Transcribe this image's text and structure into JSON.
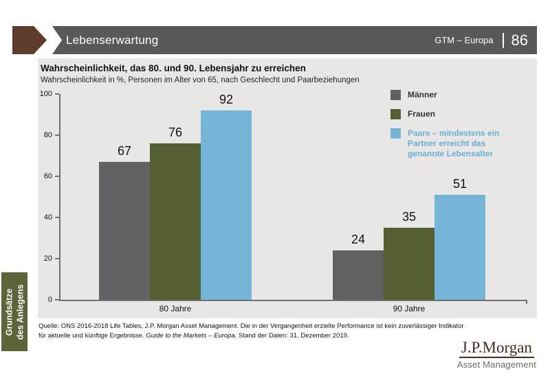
{
  "header": {
    "title": "Lebenserwartung",
    "meta": "GTM – Europa",
    "page": "86"
  },
  "sidebar": {
    "line1": "Grundsätze",
    "line2": "des Anlegens"
  },
  "chart_data": {
    "type": "bar",
    "title": "Wahrscheinlichkeit, das 80. und 90. Lebensjahr zu erreichen",
    "subtitle": "Wahrscheinlichkeit in %, Personen im Alter von 65, nach Geschlecht und Paarbeziehungen",
    "categories": [
      "80 Jahre",
      "90 Jahre"
    ],
    "series": [
      {
        "name": "Männer",
        "color": "#616163",
        "values": [
          67,
          24
        ]
      },
      {
        "name": "Frauen",
        "color": "#556032",
        "values": [
          76,
          35
        ]
      },
      {
        "name": "Paare – mindestens ein Partner erreicht das genannte Lebensalter",
        "color": "#74b4d6",
        "values": [
          92,
          51
        ]
      }
    ],
    "ylim": [
      0,
      100
    ],
    "ytick_step": 20,
    "grid": false,
    "legend_position": "right"
  },
  "legend": {
    "items": [
      {
        "label": "Männer",
        "color": "#616163",
        "text_color": "#333333"
      },
      {
        "label": "Frauen",
        "color": "#556032",
        "text_color": "#333333"
      },
      {
        "label": "Paare – mindestens ein\nPartner erreicht das\ngenannte Lebensalter",
        "color": "#74b4d6",
        "text_color": "#68aed2"
      }
    ]
  },
  "footer": {
    "line1": "Quelle: ONS 2016-2018 Life Tables, J.P. Morgan Asset Management. Die in der Vergangenheit erzielte Performance ist kein zuverlässiger Indikator",
    "line2_pre": "für aktuelle und künftige Ergebnisse. ",
    "line2_italic": "Guide to the Markets – Europa.",
    "line2_post": " Stand der Daten: 31. Dezember 2019."
  },
  "logo": {
    "name": "J.P.Morgan",
    "sub": "Asset Management"
  }
}
